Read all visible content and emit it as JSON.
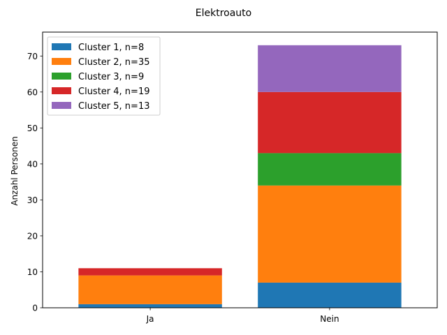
{
  "chart_data": {
    "type": "bar",
    "stacked": true,
    "title": "Elektroauto",
    "xlabel": "",
    "ylabel": "Anzahl Personen",
    "categories": [
      "Ja",
      "Nein"
    ],
    "series": [
      {
        "name": "Cluster 1, n=8",
        "values": [
          1,
          7
        ],
        "color": "#1f77b4"
      },
      {
        "name": "Cluster 2, n=35",
        "values": [
          8,
          27
        ],
        "color": "#ff7f0e"
      },
      {
        "name": "Cluster 3, n=9",
        "values": [
          0,
          9
        ],
        "color": "#2ca02c"
      },
      {
        "name": "Cluster 4, n=19",
        "values": [
          2,
          17
        ],
        "color": "#d62728"
      },
      {
        "name": "Cluster 5, n=13",
        "values": [
          0,
          13
        ],
        "color": "#9467bd"
      }
    ],
    "ylim": [
      0,
      76.65
    ],
    "yticks": [
      0,
      10,
      20,
      30,
      40,
      50,
      60,
      70
    ],
    "grid": false,
    "legend_position": "top-left"
  }
}
